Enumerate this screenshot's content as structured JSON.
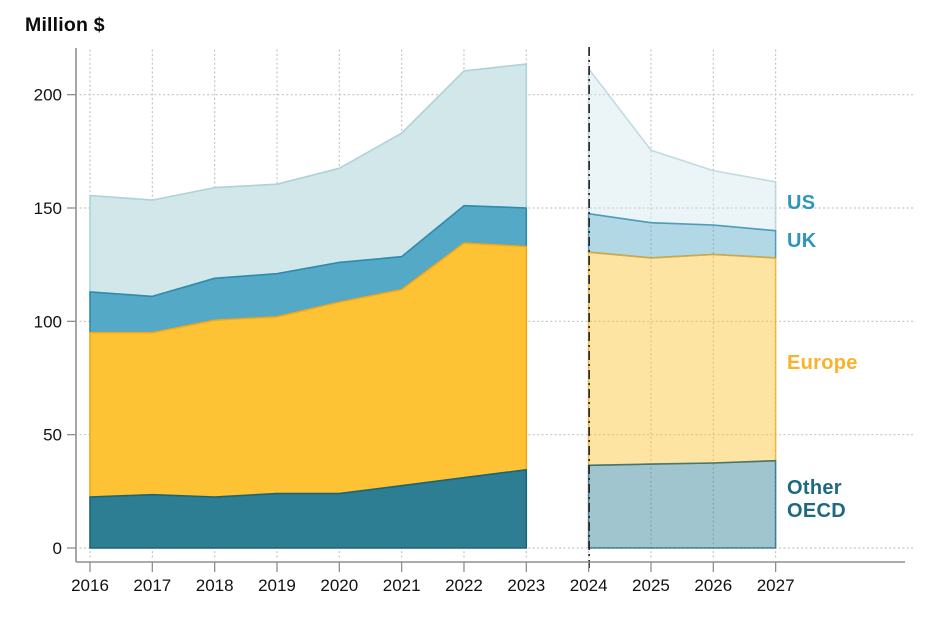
{
  "title": "Million $",
  "series_labels": {
    "us": "US",
    "uk": "UK",
    "europe": "Europe",
    "other_oecd": "Other\nOECD"
  },
  "chart_data": {
    "type": "area",
    "stacked": true,
    "title": "Million $",
    "unit": "Million $",
    "x_historical": [
      2016,
      2017,
      2018,
      2019,
      2020,
      2021,
      2022,
      2023
    ],
    "x_forecast": [
      2024,
      2025,
      2026,
      2027
    ],
    "series": [
      {
        "key": "other_oecd",
        "name": "Other OECD",
        "historical": [
          22.5,
          23.5,
          22.5,
          24,
          24,
          27.5,
          31,
          34.5
        ],
        "forecast": [
          36.5,
          37,
          37.5,
          38.5
        ],
        "fill": "#2E7E93",
        "stroke": "#1A6579",
        "label_color": "#1D6A80"
      },
      {
        "key": "europe",
        "name": "Europe",
        "historical": [
          72.5,
          71.5,
          78,
          78,
          84.5,
          86.5,
          103.5,
          98.5
        ],
        "forecast": [
          94,
          91,
          92,
          89.5
        ],
        "fill": "#FDC334",
        "stroke": "#F3A81C",
        "label_color": "#F8B32B"
      },
      {
        "key": "uk",
        "name": "UK",
        "historical": [
          18,
          16,
          18.5,
          19,
          17.5,
          14.5,
          16.5,
          17
        ],
        "forecast": [
          17,
          15.5,
          13,
          12
        ],
        "fill": "#54A9C7",
        "stroke": "#2E8BAD",
        "label_color": "#2E96BB"
      },
      {
        "key": "us",
        "name": "US",
        "historical": [
          42.5,
          42.5,
          40,
          39.5,
          41.5,
          54.5,
          59.5,
          63.5
        ],
        "forecast": [
          64,
          32,
          24,
          21.5
        ],
        "fill": "#D2E7EA",
        "stroke": "#ADD2D9",
        "label_color": "#2E96BB"
      }
    ],
    "y_ticks": [
      0,
      50,
      100,
      150,
      200
    ],
    "x_ticks": [
      2016,
      2017,
      2018,
      2019,
      2020,
      2021,
      2022,
      2023,
      2024,
      2025,
      2026,
      2027
    ],
    "ylim": [
      0,
      215
    ],
    "forecast_divider_x": 2024,
    "forecast_fill_opacity": 0.45,
    "forecast_stroke_opacity": 0.75,
    "grid": true,
    "legend_position": "right"
  },
  "colors": {
    "axis": "#8f8f8f",
    "grid": "#c3c3c3",
    "divider": "#2b2b2b",
    "text": "#121212"
  }
}
